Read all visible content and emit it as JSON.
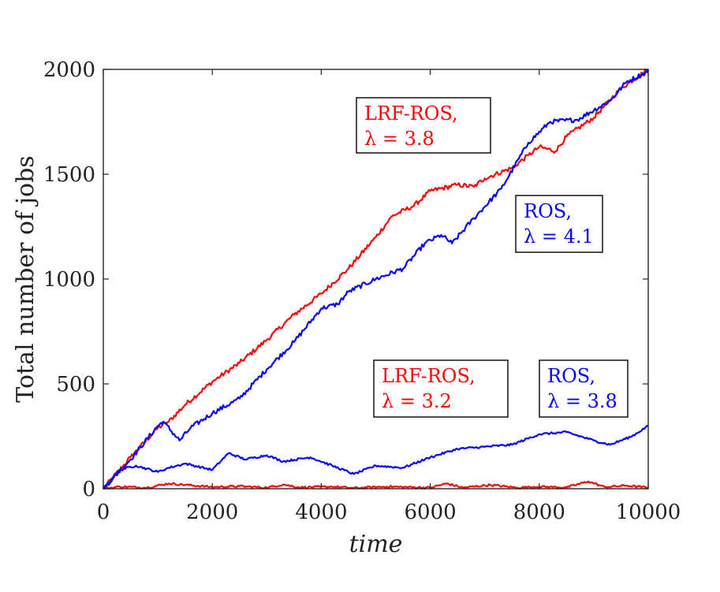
{
  "chart_data": {
    "type": "line",
    "title": "",
    "xlabel": "time",
    "ylabel": "Total number of jobs",
    "xlim": [
      0,
      10000
    ],
    "ylim": [
      0,
      2000
    ],
    "xticks": [
      0,
      2000,
      4000,
      6000,
      8000,
      10000
    ],
    "yticks": [
      0,
      500,
      1000,
      1500,
      2000
    ],
    "grid": false,
    "colors": {
      "red": "#ff0000",
      "blue": "#0000ff",
      "axis": "#262626"
    },
    "annotations": [
      {
        "line1": "LRF-ROS,",
        "line2": "λ = 3.8",
        "color": "#ff0000"
      },
      {
        "line1": "ROS,",
        "line2": "λ = 4.1",
        "color": "#0000ff"
      },
      {
        "line1": "LRF-ROS,",
        "line2": "λ = 3.2",
        "color": "#ff0000"
      },
      {
        "line1": "ROS,",
        "line2": "λ = 3.8",
        "color": "#0000ff"
      }
    ],
    "series": [
      {
        "color": "#ff0000",
        "x": [
          0,
          500,
          1000,
          1200,
          1500,
          2000,
          2500,
          3000,
          3500,
          4000,
          4500,
          5000,
          5300,
          5700,
          6000,
          6500,
          6800,
          7000,
          7500,
          7800,
          8000,
          8300,
          8500,
          9000,
          9500,
          10000
        ],
        "y": [
          0,
          150,
          290,
          320,
          400,
          510,
          600,
          710,
          830,
          930,
          1050,
          1200,
          1300,
          1350,
          1420,
          1450,
          1440,
          1480,
          1530,
          1590,
          1630,
          1610,
          1680,
          1770,
          1910,
          2000
        ]
      },
      {
        "color": "#0000ff",
        "x": [
          0,
          500,
          1000,
          1100,
          1400,
          1600,
          2000,
          2500,
          3000,
          3500,
          4000,
          4300,
          4500,
          5000,
          5500,
          5900,
          6200,
          6400,
          6800,
          7300,
          7800,
          8200,
          8700,
          9300,
          9600,
          10000
        ],
        "y": [
          0,
          140,
          300,
          320,
          230,
          290,
          360,
          430,
          570,
          700,
          860,
          880,
          940,
          1000,
          1050,
          1170,
          1210,
          1170,
          1290,
          1430,
          1650,
          1750,
          1760,
          1850,
          1940,
          1990
        ]
      },
      {
        "color": "#ff0000",
        "x": [
          0,
          300,
          800,
          1200,
          2000,
          2500,
          3000,
          3300,
          3600,
          4200,
          4600,
          5200,
          6000,
          6300,
          6600,
          7100,
          7600,
          8000,
          8500,
          8900,
          9200,
          9600,
          10000
        ],
        "y": [
          0,
          10,
          5,
          25,
          8,
          12,
          5,
          20,
          6,
          10,
          3,
          10,
          5,
          25,
          5,
          18,
          5,
          10,
          6,
          35,
          8,
          15,
          5
        ]
      },
      {
        "color": "#0000ff",
        "x": [
          0,
          300,
          600,
          1000,
          1200,
          1500,
          2000,
          2300,
          2600,
          3000,
          3300,
          3800,
          4200,
          4600,
          5000,
          5500,
          6000,
          6500,
          7000,
          7500,
          8000,
          8500,
          9000,
          9300,
          9700,
          10000
        ],
        "y": [
          0,
          90,
          110,
          80,
          100,
          120,
          90,
          170,
          140,
          160,
          130,
          150,
          110,
          70,
          110,
          100,
          150,
          190,
          200,
          210,
          260,
          270,
          230,
          210,
          250,
          300
        ]
      }
    ]
  }
}
